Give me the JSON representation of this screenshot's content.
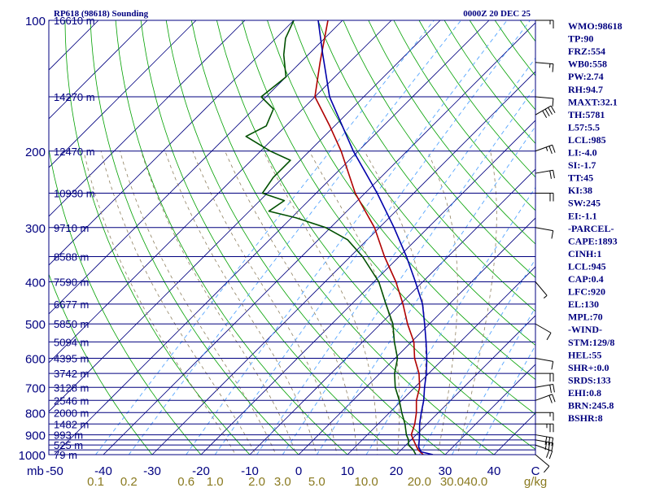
{
  "header": {
    "station": "RP618 (98618) Sounding",
    "time": "0000Z 20 DEC 25"
  },
  "colors": {
    "frame": "#000080",
    "isobar": "#00007f",
    "isotherm": "#00007f",
    "dry_adiabat": "#00a000",
    "moist_adiabat": "#8f8060",
    "mixing_ratio": "#55a5ff",
    "temperature": "#b00000",
    "dewpoint": "#005000",
    "parcel": "#0000aa",
    "pressure_label": "#000080",
    "height_label": "#000080",
    "temp_tick": "#000080",
    "mixing_label": "#8a7a20",
    "side_text": "#00007f",
    "wind": "#000000"
  },
  "chart_data": {
    "type": "line",
    "title": "RP618 (98618) Sounding",
    "subtitle": "0000Z 20 DEC 25",
    "diagram": "skew-T log-P",
    "pressure_axis": {
      "unit": "mb",
      "range": [
        1000,
        100
      ],
      "tick_labels": [
        "100",
        "200",
        "300",
        "400",
        "500",
        "600",
        "700",
        "800",
        "900",
        "1000"
      ],
      "isobars": [
        100,
        150,
        200,
        250,
        300,
        350,
        400,
        450,
        500,
        550,
        600,
        650,
        700,
        750,
        800,
        850,
        900,
        925,
        950,
        975,
        1000
      ]
    },
    "temperature_axis": {
      "unit": "C",
      "range": [
        -50,
        50
      ],
      "tick_labels": [
        "-50",
        "-40",
        "-30",
        "-20",
        "-10",
        "0",
        "10",
        "20",
        "30",
        "40",
        "C"
      ],
      "isotherm_step": 10
    },
    "mixing_ratio_axis": {
      "unit": "g/kg",
      "values": [
        0.1,
        0.2,
        0.6,
        1.0,
        2.0,
        3.0,
        5.0,
        10.0,
        20.0,
        30.0,
        40.0
      ],
      "tick_labels": [
        "0.1",
        "0.2",
        "0.6",
        "1.0",
        "2.0",
        "3.0",
        "5.0",
        "10.0",
        "20.0",
        "30.0",
        "40.0",
        "g/kg"
      ]
    },
    "height_labels": [
      {
        "p": 100,
        "label": "16610 m"
      },
      {
        "p": 150,
        "label": "14270 m"
      },
      {
        "p": 200,
        "label": "12470 m"
      },
      {
        "p": 250,
        "label": "10930 m"
      },
      {
        "p": 300,
        "label": "9710 m"
      },
      {
        "p": 350,
        "label": "8588 m"
      },
      {
        "p": 400,
        "label": "7590 m"
      },
      {
        "p": 450,
        "label": "6677 m"
      },
      {
        "p": 500,
        "label": "5850 m"
      },
      {
        "p": 550,
        "label": "5094 m"
      },
      {
        "p": 600,
        "label": "4395 m"
      },
      {
        "p": 650,
        "label": "3742 m"
      },
      {
        "p": 700,
        "label": "3128 m"
      },
      {
        "p": 750,
        "label": "2546 m"
      },
      {
        "p": 800,
        "label": "2000 m"
      },
      {
        "p": 850,
        "label": "1482 m"
      },
      {
        "p": 900,
        "label": "993 m"
      },
      {
        "p": 950,
        "label": "525 m"
      },
      {
        "p": 1000,
        "label": "79 m"
      }
    ],
    "series": [
      {
        "name": "temperature",
        "points": [
          {
            "p": 1000,
            "t": 25.5
          },
          {
            "p": 975,
            "t": 23.5
          },
          {
            "p": 950,
            "t": 22.0
          },
          {
            "p": 925,
            "t": 20.5
          },
          {
            "p": 900,
            "t": 19.0
          },
          {
            "p": 850,
            "t": 17.5
          },
          {
            "p": 800,
            "t": 15.5
          },
          {
            "p": 750,
            "t": 13.0
          },
          {
            "p": 700,
            "t": 11.0
          },
          {
            "p": 650,
            "t": 8.0
          },
          {
            "p": 600,
            "t": 4.0
          },
          {
            "p": 550,
            "t": 0.5
          },
          {
            "p": 500,
            "t": -4.5
          },
          {
            "p": 450,
            "t": -9.5
          },
          {
            "p": 400,
            "t": -15.5
          },
          {
            "p": 350,
            "t": -23.0
          },
          {
            "p": 300,
            "t": -31.0
          },
          {
            "p": 250,
            "t": -42.0
          },
          {
            "p": 200,
            "t": -53.5
          },
          {
            "p": 175,
            "t": -61.0
          },
          {
            "p": 150,
            "t": -70.0
          },
          {
            "p": 125,
            "t": -76.0
          },
          {
            "p": 100,
            "t": -83.0
          }
        ]
      },
      {
        "name": "dewpoint",
        "points": [
          {
            "p": 1000,
            "t": 24.0
          },
          {
            "p": 975,
            "t": 22.5
          },
          {
            "p": 950,
            "t": 20.5
          },
          {
            "p": 925,
            "t": 19.5
          },
          {
            "p": 900,
            "t": 18.0
          },
          {
            "p": 850,
            "t": 15.5
          },
          {
            "p": 800,
            "t": 12.5
          },
          {
            "p": 750,
            "t": 9.5
          },
          {
            "p": 700,
            "t": 6.0
          },
          {
            "p": 650,
            "t": 3.0
          },
          {
            "p": 600,
            "t": 0.5
          },
          {
            "p": 550,
            "t": -3.5
          },
          {
            "p": 500,
            "t": -7.5
          },
          {
            "p": 450,
            "t": -13.0
          },
          {
            "p": 400,
            "t": -19.0
          },
          {
            "p": 350,
            "t": -27.5
          },
          {
            "p": 320,
            "t": -34.0
          },
          {
            "p": 300,
            "t": -41.0
          },
          {
            "p": 285,
            "t": -49.0
          },
          {
            "p": 275,
            "t": -56.0
          },
          {
            "p": 260,
            "t": -55.0
          },
          {
            "p": 250,
            "t": -61.0
          },
          {
            "p": 230,
            "t": -62.0
          },
          {
            "p": 210,
            "t": -62.0
          },
          {
            "p": 200,
            "t": -68.0
          },
          {
            "p": 185,
            "t": -76.0
          },
          {
            "p": 175,
            "t": -74.0
          },
          {
            "p": 160,
            "t": -76.0
          },
          {
            "p": 150,
            "t": -81.0
          },
          {
            "p": 135,
            "t": -80.0
          },
          {
            "p": 120,
            "t": -85.0
          },
          {
            "p": 110,
            "t": -88.0
          },
          {
            "p": 100,
            "t": -90.0
          }
        ]
      },
      {
        "name": "parcel",
        "points": [
          {
            "p": 1000,
            "t": 27.5
          },
          {
            "p": 985,
            "t": 24.5
          },
          {
            "p": 960,
            "t": 23.0
          },
          {
            "p": 920,
            "t": 21.5
          },
          {
            "p": 850,
            "t": 18.5
          },
          {
            "p": 800,
            "t": 16.5
          },
          {
            "p": 750,
            "t": 14.5
          },
          {
            "p": 700,
            "t": 12.0
          },
          {
            "p": 650,
            "t": 9.5
          },
          {
            "p": 600,
            "t": 6.5
          },
          {
            "p": 550,
            "t": 3.0
          },
          {
            "p": 500,
            "t": -1.0
          },
          {
            "p": 450,
            "t": -5.5
          },
          {
            "p": 400,
            "t": -11.5
          },
          {
            "p": 350,
            "t": -18.5
          },
          {
            "p": 300,
            "t": -27.0
          },
          {
            "p": 250,
            "t": -37.5
          },
          {
            "p": 200,
            "t": -51.0
          },
          {
            "p": 150,
            "t": -67.0
          },
          {
            "p": 120,
            "t": -77.0
          },
          {
            "p": 100,
            "t": -85.0
          }
        ]
      }
    ],
    "wind_barbs": [
      {
        "p": 100,
        "dir": 90,
        "kt": 15
      },
      {
        "p": 125,
        "dir": 95,
        "kt": 15
      },
      {
        "p": 150,
        "dir": 95,
        "kt": 10
      },
      {
        "p": 165,
        "dir": 60,
        "kt": 40
      },
      {
        "p": 200,
        "dir": 70,
        "kt": 25
      },
      {
        "p": 225,
        "dir": 80,
        "kt": 20
      },
      {
        "p": 250,
        "dir": 90,
        "kt": 20
      },
      {
        "p": 300,
        "dir": 100,
        "kt": 10
      },
      {
        "p": 400,
        "dir": 140,
        "kt": 5
      },
      {
        "p": 500,
        "dir": 120,
        "kt": 10
      },
      {
        "p": 600,
        "dir": 100,
        "kt": 10
      },
      {
        "p": 650,
        "dir": 90,
        "kt": 20
      },
      {
        "p": 700,
        "dir": 80,
        "kt": 20
      },
      {
        "p": 750,
        "dir": 70,
        "kt": 20
      },
      {
        "p": 800,
        "dir": 90,
        "kt": 15
      },
      {
        "p": 850,
        "dir": 90,
        "kt": 25
      },
      {
        "p": 900,
        "dir": 100,
        "kt": 30
      },
      {
        "p": 925,
        "dir": 100,
        "kt": 30
      },
      {
        "p": 950,
        "dir": 110,
        "kt": 20
      },
      {
        "p": 1000,
        "dir": 130,
        "kt": 10
      }
    ]
  },
  "indices": [
    "WMO:98618",
    "TP:90",
    "FRZ:554",
    "WB0:558",
    "PW:2.74",
    "RH:94.7",
    "MAXT:32.1",
    "TH:5781",
    "L57:5.5",
    "LCL:985",
    "LI:-4.0",
    "SI:-1.7",
    "TT:45",
    "KI:38",
    "SW:245",
    "EI:-1.1",
    "-PARCEL-",
    "CAPE:1893",
    "CINH:1",
    "LCL:945",
    "CAP:0.4",
    "LFC:920",
    "EL:130",
    "MPL:70",
    "-WIND-",
    "STM:129/8",
    "HEL:55",
    "SHR+:0.0",
    "SRDS:133",
    "EHI:0.8",
    "BRN:245.8",
    "BSHR:8"
  ]
}
